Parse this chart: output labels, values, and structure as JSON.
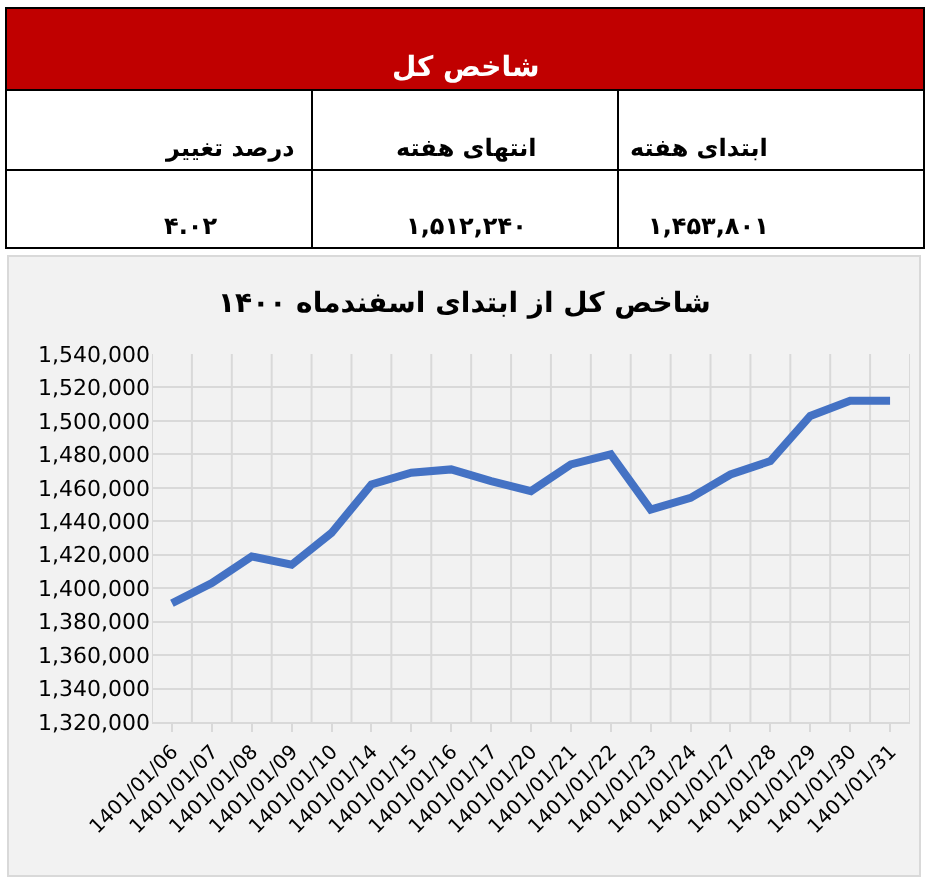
{
  "chart_data": [
    {
      "type": "other",
      "title": "شاخص کل",
      "color": "#c00000",
      "annotations": [
        "ابتدای هفته",
        "انتهای هفته",
        "درصد تغییر",
        "۱,۴۵۳,۸۰۱",
        "۱,۵۱۲,۲۴۰",
        "۴.۰۲"
      ]
    },
    {
      "type": "line",
      "title": "شاخص کل از ابتدای اسفندماه ۱۴۰۰",
      "categories": [
        "1401/01/06",
        "1401/01/07",
        "1401/01/08",
        "1401/01/09",
        "1401/01/10",
        "1401/01/14",
        "1401/01/15",
        "1401/01/16",
        "1401/01/17",
        "1401/01/20",
        "1401/01/21",
        "1401/01/22",
        "1401/01/23",
        "1401/01/24",
        "1401/01/27",
        "1401/01/28",
        "1401/01/29",
        "1401/01/30",
        "1401/01/31"
      ],
      "series": [
        {
          "color": "#4472c4",
          "values": [
            1391000,
            1403000,
            1419000,
            1414000,
            1433000,
            1462000,
            1469000,
            1471000,
            1464000,
            1458000,
            1474000,
            1480000,
            1447000,
            1454000,
            1468000,
            1476000,
            1503000,
            1512000,
            1512000
          ]
        }
      ],
      "ylim": [
        1320000,
        1540000
      ],
      "yticks": [
        {
          "value": 1320000,
          "label": "1,320,000"
        },
        {
          "value": 1340000,
          "label": "1,340,000"
        },
        {
          "value": 1360000,
          "label": "1,360,000"
        },
        {
          "value": 1380000,
          "label": "1,380,000"
        },
        {
          "value": 1400000,
          "label": "1,400,000"
        },
        {
          "value": 1420000,
          "label": "1,420,000"
        },
        {
          "value": 1440000,
          "label": "1,440,000"
        },
        {
          "value": 1460000,
          "label": "1,460,000"
        },
        {
          "value": 1480000,
          "label": "1,480,000"
        },
        {
          "value": 1500000,
          "label": "1,500,000"
        },
        {
          "value": 1520000,
          "label": "1,520,000"
        },
        {
          "value": 1540000,
          "label": "1,540,000"
        }
      ],
      "grid": true,
      "marker": "none",
      "line_style": "solid"
    }
  ]
}
